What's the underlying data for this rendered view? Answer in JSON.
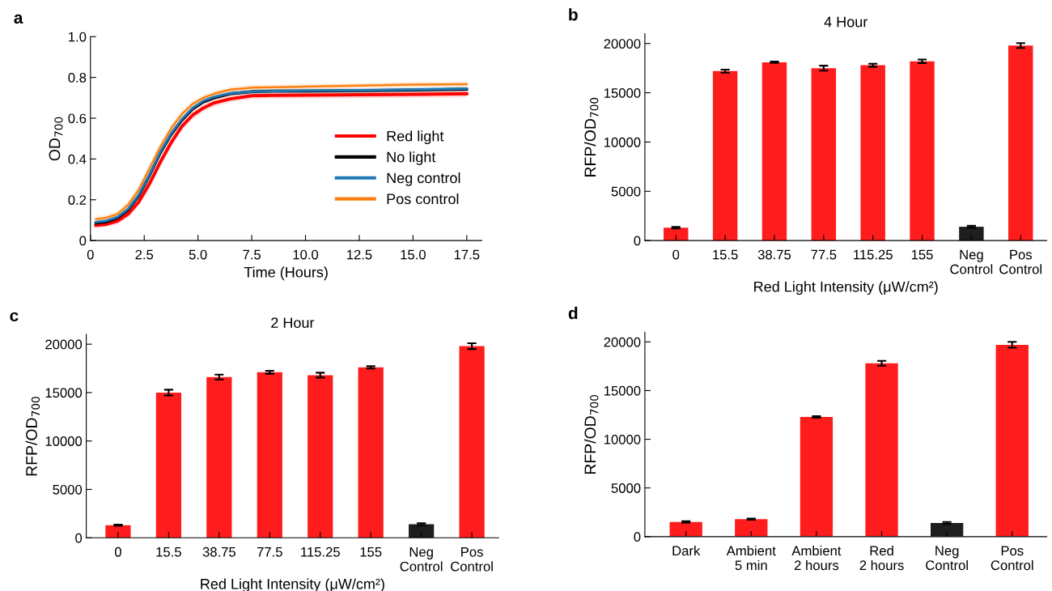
{
  "chart_data": [
    {
      "type": "line",
      "annotations": [
        "a"
      ],
      "xlabel": "Time (Hours)",
      "ylabel": "OD$_{700}$",
      "x": [
        0.25,
        0.75,
        1.25,
        1.75,
        2.25,
        2.75,
        3.25,
        3.75,
        4.25,
        4.75,
        5.25,
        5.75,
        6.5,
        7.5,
        8.5,
        10,
        12.5,
        15,
        17.5
      ],
      "series": [
        {
          "name": "Red light",
          "color": "#ff0000",
          "values": [
            0.074,
            0.08,
            0.095,
            0.13,
            0.19,
            0.28,
            0.385,
            0.48,
            0.56,
            0.615,
            0.65,
            0.675,
            0.695,
            0.71,
            0.712,
            0.713,
            0.715,
            0.717,
            0.72
          ],
          "lower": [
            0.06,
            0.066,
            0.08,
            0.112,
            0.17,
            0.255,
            0.36,
            0.455,
            0.54,
            0.595,
            0.632,
            0.657,
            0.678,
            0.693,
            0.695,
            0.696,
            0.698,
            0.7,
            0.703
          ],
          "upper": [
            0.088,
            0.094,
            0.11,
            0.148,
            0.21,
            0.305,
            0.41,
            0.505,
            0.58,
            0.635,
            0.668,
            0.693,
            0.712,
            0.727,
            0.729,
            0.73,
            0.732,
            0.734,
            0.737
          ]
        },
        {
          "name": "No light",
          "color": "#000000",
          "values": [
            0.085,
            0.092,
            0.11,
            0.15,
            0.22,
            0.32,
            0.43,
            0.52,
            0.59,
            0.645,
            0.68,
            0.7,
            0.72,
            0.73,
            0.733,
            0.733,
            0.735,
            0.738,
            0.742
          ],
          "lower": [
            0.075,
            0.082,
            0.099,
            0.137,
            0.205,
            0.303,
            0.413,
            0.505,
            0.577,
            0.633,
            0.669,
            0.69,
            0.71,
            0.72,
            0.723,
            0.723,
            0.725,
            0.728,
            0.732
          ],
          "upper": [
            0.095,
            0.102,
            0.121,
            0.163,
            0.235,
            0.337,
            0.447,
            0.535,
            0.603,
            0.657,
            0.691,
            0.71,
            0.73,
            0.74,
            0.743,
            0.743,
            0.745,
            0.748,
            0.752
          ]
        },
        {
          "name": "Neg control",
          "color": "#1f77b4",
          "values": [
            0.09,
            0.097,
            0.115,
            0.155,
            0.225,
            0.325,
            0.435,
            0.525,
            0.595,
            0.65,
            0.685,
            0.705,
            0.722,
            0.73,
            0.733,
            0.735,
            0.737,
            0.74,
            0.745
          ],
          "lower": [
            0.078,
            0.085,
            0.102,
            0.14,
            0.208,
            0.306,
            0.416,
            0.508,
            0.58,
            0.637,
            0.673,
            0.694,
            0.711,
            0.719,
            0.722,
            0.724,
            0.726,
            0.729,
            0.734
          ],
          "upper": [
            0.102,
            0.109,
            0.128,
            0.17,
            0.242,
            0.344,
            0.454,
            0.542,
            0.61,
            0.663,
            0.697,
            0.716,
            0.733,
            0.741,
            0.744,
            0.746,
            0.748,
            0.751,
            0.756
          ]
        },
        {
          "name": "Pos control",
          "color": "#ff7f0e",
          "values": [
            0.105,
            0.112,
            0.13,
            0.175,
            0.25,
            0.355,
            0.46,
            0.55,
            0.62,
            0.67,
            0.7,
            0.72,
            0.74,
            0.75,
            0.752,
            0.755,
            0.76,
            0.765,
            0.767
          ],
          "lower": [
            0.09,
            0.097,
            0.114,
            0.157,
            0.228,
            0.332,
            0.437,
            0.53,
            0.602,
            0.654,
            0.685,
            0.706,
            0.727,
            0.737,
            0.739,
            0.742,
            0.747,
            0.752,
            0.754
          ],
          "upper": [
            0.12,
            0.127,
            0.146,
            0.193,
            0.272,
            0.378,
            0.483,
            0.57,
            0.638,
            0.686,
            0.715,
            0.734,
            0.753,
            0.763,
            0.765,
            0.768,
            0.773,
            0.778,
            0.78
          ]
        }
      ],
      "xlim": [
        0,
        18.2
      ],
      "xticks": [
        0,
        2.5,
        {
          "value": 5,
          "label": "5.0"
        },
        7.5,
        {
          "value": 10,
          "label": "10.0"
        },
        12.5,
        {
          "value": 15,
          "label": "15.0"
        },
        17.5
      ],
      "ylim": [
        0,
        1.0
      ],
      "yticks": [
        0,
        0.2,
        0.4,
        0.6,
        0.8,
        {
          "value": 1,
          "label": "1.0"
        }
      ],
      "legend": "bottom right",
      "grid": false
    },
    {
      "type": "bar",
      "annotations": [
        "b"
      ],
      "title": "4 Hour",
      "xlabel": "Red Light Intensity (μW/cm²)",
      "ylabel": "RFP/OD$_{700}$",
      "categories": [
        "0",
        "15.5",
        "38.75",
        "77.5",
        "115.25",
        "155",
        "Neg\nControl",
        "Pos\nControl"
      ],
      "values": [
        1300,
        17200,
        18100,
        17500,
        17800,
        18200,
        1400,
        19800
      ],
      "errors": [
        80,
        150,
        60,
        250,
        150,
        180,
        100,
        250
      ],
      "colors": [
        "#fe1c1c",
        "#fe1c1c",
        "#fe1c1c",
        "#fe1c1c",
        "#fe1c1c",
        "#fe1c1c",
        "#1e1e1e",
        "#fe1c1c"
      ],
      "ylim": [
        0,
        21000
      ],
      "yticks": [
        0,
        5000,
        10000,
        15000,
        20000
      ],
      "grid": false
    },
    {
      "type": "bar",
      "annotations": [
        "c"
      ],
      "title": "2 Hour",
      "xlabel": "Red Light Intensity (μW/cm²)",
      "ylabel": "RFP/OD$_{700}$",
      "categories": [
        "0",
        "15.5",
        "38.75",
        "77.5",
        "115.25",
        "155",
        "Neg\nControl",
        "Pos\nControl"
      ],
      "values": [
        1300,
        15000,
        16600,
        17100,
        16800,
        17600,
        1400,
        19800
      ],
      "errors": [
        60,
        300,
        250,
        150,
        250,
        120,
        100,
        300
      ],
      "colors": [
        "#fe1c1c",
        "#fe1c1c",
        "#fe1c1c",
        "#fe1c1c",
        "#fe1c1c",
        "#fe1c1c",
        "#1e1e1e",
        "#fe1c1c"
      ],
      "ylim": [
        0,
        21000
      ],
      "yticks": [
        0,
        5000,
        10000,
        15000,
        20000
      ],
      "grid": false
    },
    {
      "type": "bar",
      "annotations": [
        "d"
      ],
      "ylabel": "RFP/OD$_{700}$",
      "categories": [
        "Dark",
        "Ambient\n5 min",
        "Ambient\n2 hours",
        "Red\n2 hours",
        "Neg\nControl",
        "Pos\nControl"
      ],
      "values": [
        1500,
        1800,
        12300,
        17800,
        1400,
        19700
      ],
      "errors": [
        80,
        60,
        80,
        250,
        100,
        300
      ],
      "colors": [
        "#fe1c1c",
        "#fe1c1c",
        "#fe1c1c",
        "#fe1c1c",
        "#1e1e1e",
        "#fe1c1c"
      ],
      "ylim": [
        0,
        21000
      ],
      "yticks": [
        0,
        5000,
        10000,
        15000,
        20000
      ],
      "grid": false
    }
  ]
}
